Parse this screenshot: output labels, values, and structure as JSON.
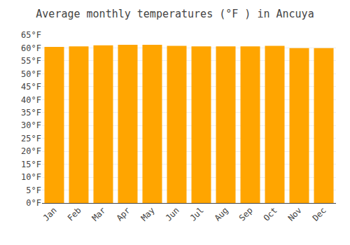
{
  "chart_data": {
    "type": "bar",
    "title": "Average monthly temperatures (°F ) in Ancuya",
    "categories": [
      "Jan",
      "Feb",
      "Mar",
      "Apr",
      "May",
      "Jun",
      "Jul",
      "Aug",
      "Sep",
      "Oct",
      "Nov",
      "Dec"
    ],
    "values": [
      60.4,
      60.6,
      61.0,
      61.2,
      61.2,
      60.8,
      60.6,
      60.6,
      60.6,
      60.8,
      59.9,
      59.9
    ],
    "color": "#FFA500",
    "ylim": [
      0,
      65
    ],
    "yticks": [
      {
        "value": 0,
        "label": "0°F"
      },
      {
        "value": 5,
        "label": "5°F"
      },
      {
        "value": 10,
        "label": "10°F"
      },
      {
        "value": 15,
        "label": "15°F"
      },
      {
        "value": 20,
        "label": "20°F"
      },
      {
        "value": 25,
        "label": "25°F"
      },
      {
        "value": 30,
        "label": "30°F"
      },
      {
        "value": 35,
        "label": "35°F"
      },
      {
        "value": 40,
        "label": "40°F"
      },
      {
        "value": 45,
        "label": "45°F"
      },
      {
        "value": 50,
        "label": "50°F"
      },
      {
        "value": 55,
        "label": "55°F"
      },
      {
        "value": 60,
        "label": "60°F"
      },
      {
        "value": 65,
        "label": "65°F"
      }
    ],
    "grid": true
  }
}
